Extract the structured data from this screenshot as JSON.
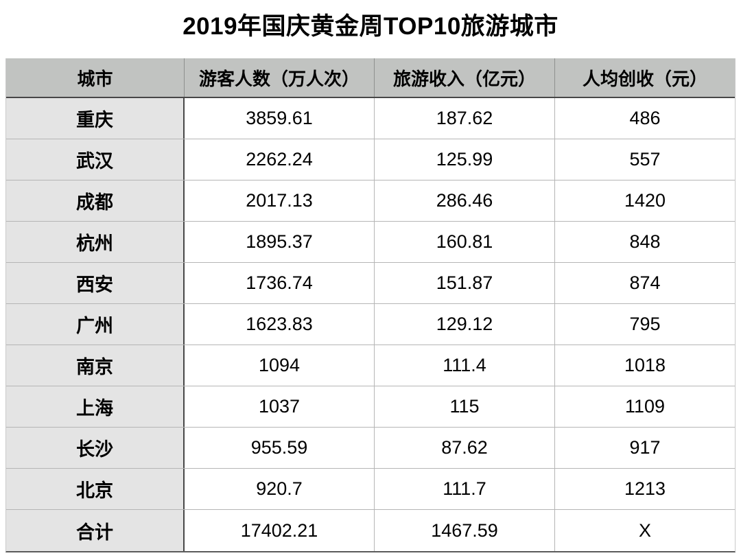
{
  "title": "2019年国庆黄金周TOP10旅游城市",
  "table": {
    "headers": [
      "城市",
      "游客人数（万人次）",
      "旅游收入（亿元）",
      "人均创收（元）"
    ],
    "rows": [
      [
        "重庆",
        "3859.61",
        "187.62",
        "486"
      ],
      [
        "武汉",
        "2262.24",
        "125.99",
        "557"
      ],
      [
        "成都",
        "2017.13",
        "286.46",
        "1420"
      ],
      [
        "杭州",
        "1895.37",
        "160.81",
        "848"
      ],
      [
        "西安",
        "1736.74",
        "151.87",
        "874"
      ],
      [
        "广州",
        "1623.83",
        "129.12",
        "795"
      ],
      [
        "南京",
        "1094",
        "111.4",
        "1018"
      ],
      [
        "上海",
        "1037",
        "115",
        "1109"
      ],
      [
        "长沙",
        "955.59",
        "87.62",
        "917"
      ],
      [
        "北京",
        "920.7",
        "111.7",
        "1213"
      ],
      [
        "合计",
        "17402.21",
        "1467.59",
        "X"
      ]
    ]
  },
  "chart_data": {
    "type": "table",
    "title": "2019年国庆黄金周TOP10旅游城市",
    "columns": [
      "城市",
      "游客人数（万人次）",
      "旅游收入（亿元）",
      "人均创收（元）"
    ],
    "rows": [
      {
        "city": "重庆",
        "tourists_wan": 3859.61,
        "revenue_yi": 187.62,
        "per_capita_yuan": 486
      },
      {
        "city": "武汉",
        "tourists_wan": 2262.24,
        "revenue_yi": 125.99,
        "per_capita_yuan": 557
      },
      {
        "city": "成都",
        "tourists_wan": 2017.13,
        "revenue_yi": 286.46,
        "per_capita_yuan": 1420
      },
      {
        "city": "杭州",
        "tourists_wan": 1895.37,
        "revenue_yi": 160.81,
        "per_capita_yuan": 848
      },
      {
        "city": "西安",
        "tourists_wan": 1736.74,
        "revenue_yi": 151.87,
        "per_capita_yuan": 874
      },
      {
        "city": "广州",
        "tourists_wan": 1623.83,
        "revenue_yi": 129.12,
        "per_capita_yuan": 795
      },
      {
        "city": "南京",
        "tourists_wan": 1094,
        "revenue_yi": 111.4,
        "per_capita_yuan": 1018
      },
      {
        "city": "上海",
        "tourists_wan": 1037,
        "revenue_yi": 115,
        "per_capita_yuan": 1109
      },
      {
        "city": "长沙",
        "tourists_wan": 955.59,
        "revenue_yi": 87.62,
        "per_capita_yuan": 917
      },
      {
        "city": "北京",
        "tourists_wan": 920.7,
        "revenue_yi": 111.7,
        "per_capita_yuan": 1213
      }
    ],
    "total_row": {
      "city": "合计",
      "tourists_wan": 17402.21,
      "revenue_yi": 1467.59,
      "per_capita_yuan": "X"
    }
  },
  "colors": {
    "page_bg": "#ffffff",
    "header_bg": "#c1c3c1",
    "city_column_bg": "#e4e4e4",
    "row_separator": "#b5b5b5",
    "strong_border": "#474747",
    "text": "#000000"
  }
}
